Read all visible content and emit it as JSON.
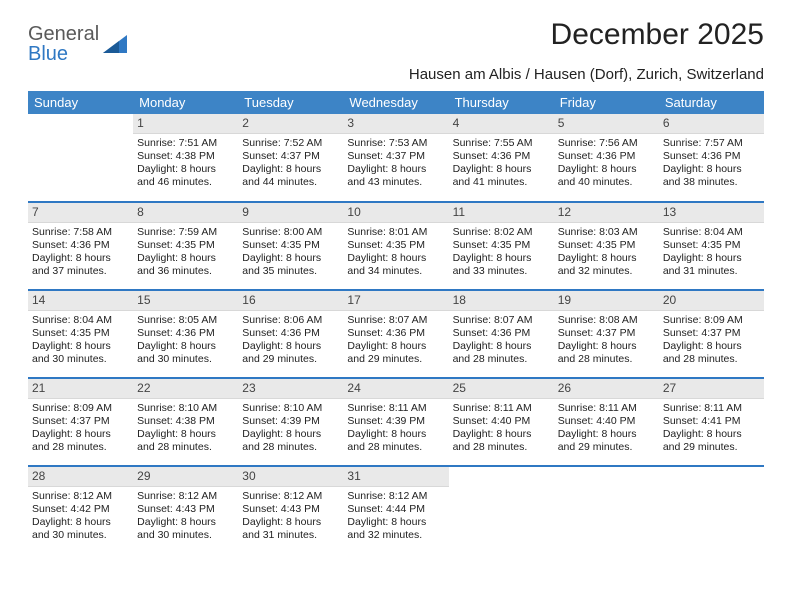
{
  "brand": {
    "top": "General",
    "bottom": "Blue"
  },
  "title": "December 2025",
  "subtitle": "Hausen am Albis / Hausen (Dorf), Zurich, Switzerland",
  "dayHeaders": [
    "Sunday",
    "Monday",
    "Tuesday",
    "Wednesday",
    "Thursday",
    "Friday",
    "Saturday"
  ],
  "colors": {
    "headerBg": "#3d84c6",
    "headerText": "#ffffff",
    "dayNumBg": "#e9e9e9",
    "weekBorder": "#2f78c3",
    "logoBlue": "#2f78c3",
    "logoGray": "#5a5a5a"
  },
  "weeks": [
    [
      {
        "n": "",
        "sr": "",
        "ss": "",
        "dl": ""
      },
      {
        "n": "1",
        "sr": "7:51 AM",
        "ss": "4:38 PM",
        "dl": "8 hours and 46 minutes."
      },
      {
        "n": "2",
        "sr": "7:52 AM",
        "ss": "4:37 PM",
        "dl": "8 hours and 44 minutes."
      },
      {
        "n": "3",
        "sr": "7:53 AM",
        "ss": "4:37 PM",
        "dl": "8 hours and 43 minutes."
      },
      {
        "n": "4",
        "sr": "7:55 AM",
        "ss": "4:36 PM",
        "dl": "8 hours and 41 minutes."
      },
      {
        "n": "5",
        "sr": "7:56 AM",
        "ss": "4:36 PM",
        "dl": "8 hours and 40 minutes."
      },
      {
        "n": "6",
        "sr": "7:57 AM",
        "ss": "4:36 PM",
        "dl": "8 hours and 38 minutes."
      }
    ],
    [
      {
        "n": "7",
        "sr": "7:58 AM",
        "ss": "4:36 PM",
        "dl": "8 hours and 37 minutes."
      },
      {
        "n": "8",
        "sr": "7:59 AM",
        "ss": "4:35 PM",
        "dl": "8 hours and 36 minutes."
      },
      {
        "n": "9",
        "sr": "8:00 AM",
        "ss": "4:35 PM",
        "dl": "8 hours and 35 minutes."
      },
      {
        "n": "10",
        "sr": "8:01 AM",
        "ss": "4:35 PM",
        "dl": "8 hours and 34 minutes."
      },
      {
        "n": "11",
        "sr": "8:02 AM",
        "ss": "4:35 PM",
        "dl": "8 hours and 33 minutes."
      },
      {
        "n": "12",
        "sr": "8:03 AM",
        "ss": "4:35 PM",
        "dl": "8 hours and 32 minutes."
      },
      {
        "n": "13",
        "sr": "8:04 AM",
        "ss": "4:35 PM",
        "dl": "8 hours and 31 minutes."
      }
    ],
    [
      {
        "n": "14",
        "sr": "8:04 AM",
        "ss": "4:35 PM",
        "dl": "8 hours and 30 minutes."
      },
      {
        "n": "15",
        "sr": "8:05 AM",
        "ss": "4:36 PM",
        "dl": "8 hours and 30 minutes."
      },
      {
        "n": "16",
        "sr": "8:06 AM",
        "ss": "4:36 PM",
        "dl": "8 hours and 29 minutes."
      },
      {
        "n": "17",
        "sr": "8:07 AM",
        "ss": "4:36 PM",
        "dl": "8 hours and 29 minutes."
      },
      {
        "n": "18",
        "sr": "8:07 AM",
        "ss": "4:36 PM",
        "dl": "8 hours and 28 minutes."
      },
      {
        "n": "19",
        "sr": "8:08 AM",
        "ss": "4:37 PM",
        "dl": "8 hours and 28 minutes."
      },
      {
        "n": "20",
        "sr": "8:09 AM",
        "ss": "4:37 PM",
        "dl": "8 hours and 28 minutes."
      }
    ],
    [
      {
        "n": "21",
        "sr": "8:09 AM",
        "ss": "4:37 PM",
        "dl": "8 hours and 28 minutes."
      },
      {
        "n": "22",
        "sr": "8:10 AM",
        "ss": "4:38 PM",
        "dl": "8 hours and 28 minutes."
      },
      {
        "n": "23",
        "sr": "8:10 AM",
        "ss": "4:39 PM",
        "dl": "8 hours and 28 minutes."
      },
      {
        "n": "24",
        "sr": "8:11 AM",
        "ss": "4:39 PM",
        "dl": "8 hours and 28 minutes."
      },
      {
        "n": "25",
        "sr": "8:11 AM",
        "ss": "4:40 PM",
        "dl": "8 hours and 28 minutes."
      },
      {
        "n": "26",
        "sr": "8:11 AM",
        "ss": "4:40 PM",
        "dl": "8 hours and 29 minutes."
      },
      {
        "n": "27",
        "sr": "8:11 AM",
        "ss": "4:41 PM",
        "dl": "8 hours and 29 minutes."
      }
    ],
    [
      {
        "n": "28",
        "sr": "8:12 AM",
        "ss": "4:42 PM",
        "dl": "8 hours and 30 minutes."
      },
      {
        "n": "29",
        "sr": "8:12 AM",
        "ss": "4:43 PM",
        "dl": "8 hours and 30 minutes."
      },
      {
        "n": "30",
        "sr": "8:12 AM",
        "ss": "4:43 PM",
        "dl": "8 hours and 31 minutes."
      },
      {
        "n": "31",
        "sr": "8:12 AM",
        "ss": "4:44 PM",
        "dl": "8 hours and 32 minutes."
      },
      {
        "n": "",
        "sr": "",
        "ss": "",
        "dl": ""
      },
      {
        "n": "",
        "sr": "",
        "ss": "",
        "dl": ""
      },
      {
        "n": "",
        "sr": "",
        "ss": "",
        "dl": ""
      }
    ]
  ],
  "labels": {
    "sunrise": "Sunrise:",
    "sunset": "Sunset:",
    "daylight": "Daylight:"
  }
}
